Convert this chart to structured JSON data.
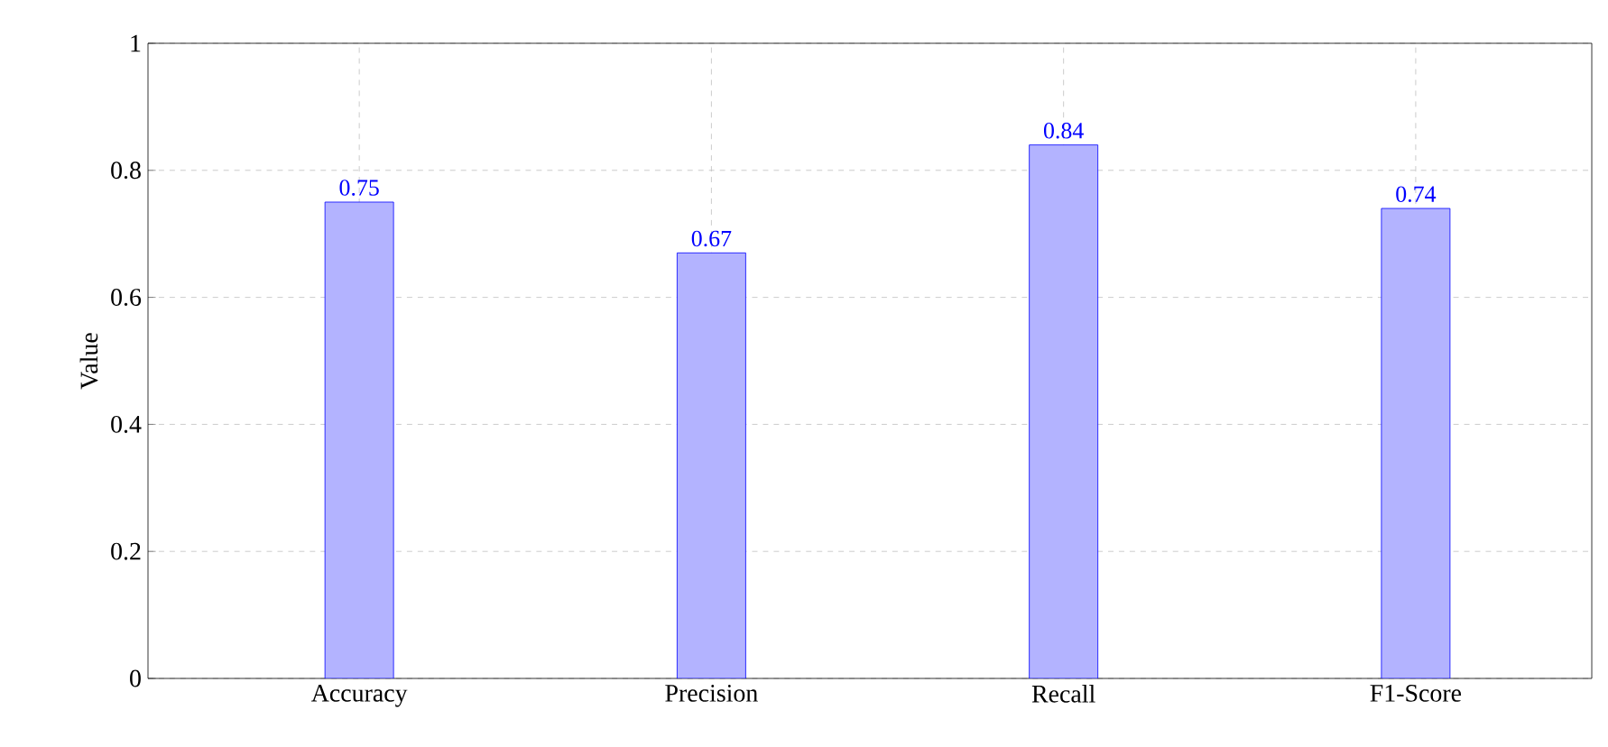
{
  "chart_data": {
    "type": "bar",
    "ylabel": "Value",
    "categories": [
      "Accuracy",
      "Precision",
      "Recall",
      "F1-Score"
    ],
    "values": [
      0.75,
      0.67,
      0.84,
      0.74
    ],
    "color": "#b3b3ff",
    "ylim": [
      0,
      1
    ],
    "yticks": [
      0,
      0.2,
      0.4,
      0.6,
      0.8,
      1
    ],
    "grid": true,
    "data_labels": true
  }
}
